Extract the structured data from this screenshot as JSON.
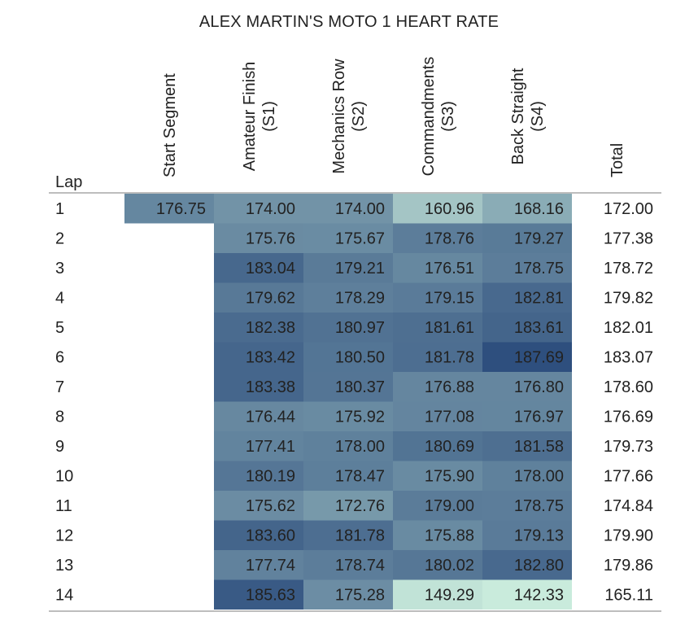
{
  "chart_data": {
    "type": "heatmap",
    "title": "ALEX MARTIN'S MOTO 1 HEART RATE",
    "row_header": "Lap",
    "columns": [
      [
        "Start Segment"
      ],
      [
        "Amateur Finish",
        "(S1)"
      ],
      [
        "Mechanics Row",
        "(S2)"
      ],
      [
        "Commandments",
        "(S3)"
      ],
      [
        "Back Straight",
        "(S4)"
      ],
      [
        "Total"
      ]
    ],
    "rows": [
      {
        "lap": "1",
        "values": [
          "176.75",
          "174.00",
          "174.00",
          "160.96",
          "168.16",
          "172.00"
        ]
      },
      {
        "lap": "2",
        "values": [
          "",
          "175.76",
          "175.67",
          "178.76",
          "179.27",
          "177.38"
        ]
      },
      {
        "lap": "3",
        "values": [
          "",
          "183.04",
          "179.21",
          "176.51",
          "178.75",
          "178.72"
        ]
      },
      {
        "lap": "4",
        "values": [
          "",
          "179.62",
          "178.29",
          "179.15",
          "182.81",
          "179.82"
        ]
      },
      {
        "lap": "5",
        "values": [
          "",
          "182.38",
          "180.97",
          "181.61",
          "183.61",
          "182.01"
        ]
      },
      {
        "lap": "6",
        "values": [
          "",
          "183.42",
          "180.50",
          "181.78",
          "187.69",
          "183.07"
        ]
      },
      {
        "lap": "7",
        "values": [
          "",
          "183.38",
          "180.37",
          "176.88",
          "176.80",
          "178.60"
        ]
      },
      {
        "lap": "8",
        "values": [
          "",
          "176.44",
          "175.92",
          "177.08",
          "176.97",
          "176.69"
        ]
      },
      {
        "lap": "9",
        "values": [
          "",
          "177.41",
          "178.00",
          "180.69",
          "181.58",
          "179.73"
        ]
      },
      {
        "lap": "10",
        "values": [
          "",
          "180.19",
          "178.47",
          "175.90",
          "178.00",
          "177.66"
        ]
      },
      {
        "lap": "11",
        "values": [
          "",
          "175.62",
          "172.76",
          "179.00",
          "178.75",
          "174.84"
        ]
      },
      {
        "lap": "12",
        "values": [
          "",
          "183.60",
          "181.78",
          "175.88",
          "179.13",
          "179.90"
        ]
      },
      {
        "lap": "13",
        "values": [
          "",
          "177.74",
          "178.74",
          "180.02",
          "182.80",
          "179.86"
        ]
      },
      {
        "lap": "14",
        "values": [
          "",
          "185.63",
          "175.28",
          "149.29",
          "142.33",
          "165.11"
        ]
      }
    ],
    "colored_columns": [
      0,
      1,
      2,
      3,
      4
    ],
    "color_scale": {
      "low": "#c9ebdc",
      "high": "#2e4f7e"
    }
  }
}
